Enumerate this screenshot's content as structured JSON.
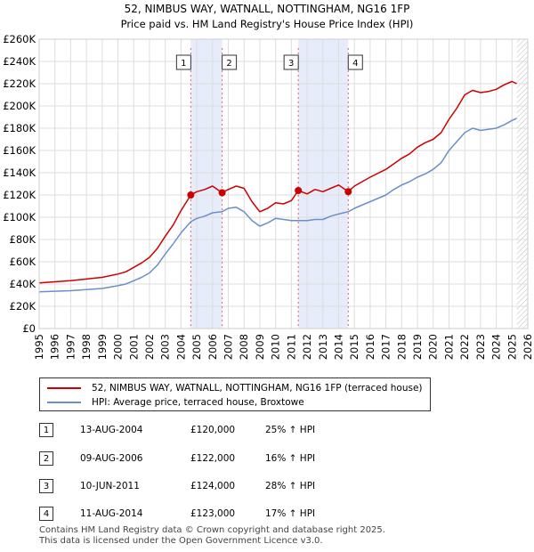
{
  "chart_data": {
    "type": "line",
    "title": "52, NIMBUS WAY, WATNALL, NOTTINGHAM, NG16 1FP",
    "subtitle": "Price paid vs. HM Land Registry's House Price Index (HPI)",
    "xlabel": "",
    "ylabel": "",
    "xlim": [
      1995,
      2026
    ],
    "ylim": [
      0,
      260000
    ],
    "y_ticks": [
      0,
      20000,
      40000,
      60000,
      80000,
      100000,
      120000,
      140000,
      160000,
      180000,
      200000,
      220000,
      240000,
      260000
    ],
    "y_tick_labels": [
      "£0",
      "£20K",
      "£40K",
      "£60K",
      "£80K",
      "£100K",
      "£120K",
      "£140K",
      "£160K",
      "£180K",
      "£200K",
      "£220K",
      "£240K",
      "£260K"
    ],
    "x_ticks": [
      1995,
      1996,
      1997,
      1998,
      1999,
      2000,
      2001,
      2002,
      2003,
      2004,
      2005,
      2006,
      2007,
      2008,
      2009,
      2010,
      2011,
      2012,
      2013,
      2014,
      2015,
      2016,
      2017,
      2018,
      2019,
      2020,
      2021,
      2022,
      2023,
      2024,
      2025,
      2026
    ],
    "x_tick_labels": [
      "1995",
      "1996",
      "1997",
      "1998",
      "1999",
      "2000",
      "2001",
      "2002",
      "2003",
      "2004",
      "2005",
      "2006",
      "2007",
      "2008",
      "2009",
      "2010",
      "2011",
      "2012",
      "2013",
      "2014",
      "2015",
      "2016",
      "2017",
      "2018",
      "2019",
      "2020",
      "2021",
      "2022",
      "2023",
      "2024",
      "2025",
      "2026"
    ],
    "series": [
      {
        "name": "52, NIMBUS WAY, WATNALL, NOTTINGHAM, NG16 1FP (terraced house)",
        "color": "#cc0000",
        "x": [
          1995.0,
          1996.0,
          1997.0,
          1998.0,
          1999.0,
          2000.0,
          2000.5,
          2001.0,
          2001.5,
          2002.0,
          2002.5,
          2003.0,
          2003.5,
          2004.0,
          2004.62,
          2005.0,
          2005.5,
          2006.0,
          2006.6,
          2007.0,
          2007.5,
          2008.0,
          2008.5,
          2009.0,
          2009.5,
          2010.0,
          2010.5,
          2011.0,
          2011.44,
          2012.0,
          2012.5,
          2013.0,
          2013.5,
          2014.0,
          2014.61,
          2015.0,
          2016.0,
          2017.0,
          2017.5,
          2018.0,
          2018.5,
          2019.0,
          2019.5,
          2020.0,
          2020.5,
          2021.0,
          2021.5,
          2022.0,
          2022.5,
          2023.0,
          2023.5,
          2024.0,
          2024.5,
          2025.0,
          2025.3
        ],
        "values": [
          41000,
          42000,
          43000,
          44500,
          46000,
          49000,
          51000,
          55000,
          59000,
          64000,
          72000,
          83000,
          93000,
          106000,
          120000,
          123000,
          125000,
          128000,
          122000,
          125000,
          128000,
          126000,
          114000,
          105000,
          108000,
          113000,
          112000,
          115000,
          124000,
          121000,
          125000,
          123000,
          126000,
          129000,
          123000,
          128000,
          136000,
          143000,
          148000,
          153000,
          157000,
          163000,
          167000,
          170000,
          176000,
          188000,
          198000,
          210000,
          214000,
          212000,
          213000,
          215000,
          219000,
          222000,
          220000
        ]
      },
      {
        "name": "HPI: Average price, terraced house, Broxtowe",
        "color": "#6b8fc8",
        "x": [
          1995.0,
          1996.0,
          1997.0,
          1998.0,
          1999.0,
          2000.0,
          2000.5,
          2001.0,
          2001.5,
          2002.0,
          2002.5,
          2003.0,
          2003.5,
          2004.0,
          2004.62,
          2005.0,
          2005.5,
          2006.0,
          2006.6,
          2007.0,
          2007.5,
          2008.0,
          2008.5,
          2009.0,
          2009.5,
          2010.0,
          2010.5,
          2011.0,
          2011.44,
          2012.0,
          2012.5,
          2013.0,
          2013.5,
          2014.0,
          2014.61,
          2015.0,
          2016.0,
          2017.0,
          2017.5,
          2018.0,
          2018.5,
          2019.0,
          2019.5,
          2020.0,
          2020.5,
          2021.0,
          2021.5,
          2022.0,
          2022.5,
          2023.0,
          2023.5,
          2024.0,
          2024.5,
          2025.0,
          2025.3
        ],
        "values": [
          33000,
          33500,
          34000,
          35000,
          36000,
          38500,
          40000,
          43000,
          46000,
          50000,
          57000,
          67000,
          76000,
          86000,
          96000,
          99000,
          101000,
          104000,
          105000,
          108000,
          109000,
          105000,
          97000,
          92000,
          95000,
          99000,
          98000,
          97000,
          97000,
          97000,
          98000,
          98000,
          101000,
          103000,
          105000,
          108000,
          114000,
          120000,
          125000,
          129000,
          132000,
          136000,
          139000,
          143000,
          149000,
          160000,
          168000,
          176000,
          180000,
          178000,
          179000,
          180000,
          183000,
          187000,
          189000
        ]
      }
    ],
    "sales": [
      {
        "num": "1",
        "x": 2004.62,
        "value": 120000,
        "date": "13-AUG-2004",
        "price": "£120,000",
        "hpi": "25% ↑ HPI"
      },
      {
        "num": "2",
        "x": 2006.61,
        "value": 122000,
        "date": "09-AUG-2006",
        "price": "£122,000",
        "hpi": "16% ↑ HPI"
      },
      {
        "num": "3",
        "x": 2011.44,
        "value": 124000,
        "date": "10-JUN-2011",
        "price": "£124,000",
        "hpi": "28% ↑ HPI"
      },
      {
        "num": "4",
        "x": 2014.61,
        "value": 123000,
        "date": "11-AUG-2014",
        "price": "£123,000",
        "hpi": "17% ↑ HPI"
      }
    ],
    "shaded_ranges": [
      [
        2004.62,
        2006.61
      ],
      [
        2011.44,
        2014.61
      ]
    ],
    "future_start": 2025.3,
    "grid": true,
    "legend_position": "bottom"
  },
  "legend": {
    "property_label": "52, NIMBUS WAY, WATNALL, NOTTINGHAM, NG16 1FP (terraced house)",
    "hpi_label": "HPI: Average price, terraced house, Broxtowe"
  },
  "footer": {
    "line1": "Contains HM Land Registry data © Crown copyright and database right 2025.",
    "line2": "This data is licensed under the Open Government Licence v3.0."
  }
}
